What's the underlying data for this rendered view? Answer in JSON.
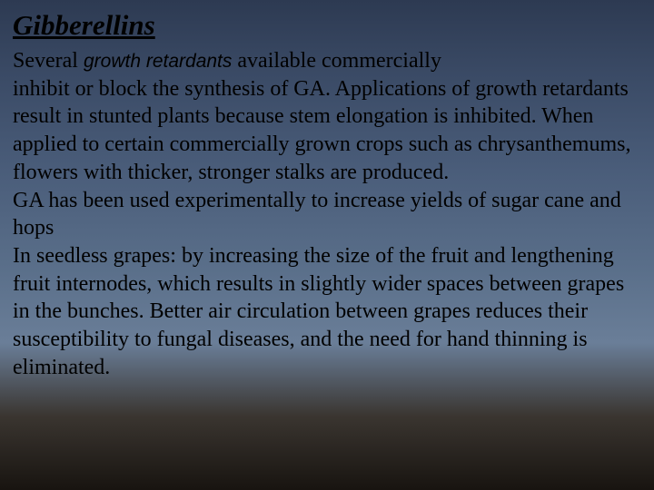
{
  "title": "Gibberellins",
  "body": {
    "line1_part1": "Several ",
    "line1_retardants": "growth retardants",
    "line1_part2": " available commercially",
    "para1_rest": "inhibit or block the synthesis of GA. Applications of growth retardants result in stunted plants because stem elongation is inhibited. When applied to certain commercially grown crops such as chrysanthemums, flowers with thicker, stronger stalks are produced.",
    "para2": "GA has been used experimentally to increase yields of sugar cane and hops",
    "para3": "In seedless grapes: by increasing the size of the fruit and lengthening fruit internodes, which results in slightly wider spaces between grapes in the bunches. Better air circulation between grapes reduces their susceptibility to fungal diseases, and the need for hand thinning is eliminated."
  },
  "colors": {
    "text": "#000000",
    "bg_top": "#2d3a52",
    "bg_bottom": "#181410"
  },
  "typography": {
    "title_fontsize": 31,
    "body_fontsize": 24,
    "title_style": "italic bold underline",
    "body_family": "Times New Roman",
    "retardants_family": "Arial"
  }
}
